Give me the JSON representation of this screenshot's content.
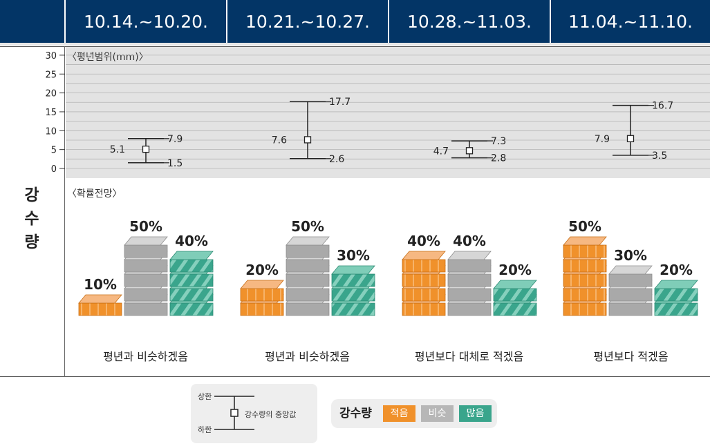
{
  "header": {
    "weeks": [
      "10.14.~10.20.",
      "10.21.~10.27.",
      "10.28.~11.03.",
      "11.04.~11.10."
    ]
  },
  "side_label": [
    "강",
    "수",
    "량"
  ],
  "range_section_title": "〈평년범위(mm)〉",
  "prob_section_title": "〈확률전망〉",
  "chart_data": {
    "type": "error-bar",
    "categories": [
      "10.14.~10.20.",
      "10.21.~10.27.",
      "10.28.~11.03.",
      "11.04.~11.10."
    ],
    "ylim": [
      0,
      30
    ],
    "yticks": [
      0,
      5,
      10,
      15,
      20,
      25,
      30
    ],
    "grid": true,
    "series": [
      {
        "values": [
          5.1,
          7.6,
          4.7,
          7.9
        ]
      },
      {
        "values": [
          7.9,
          17.7,
          7.3,
          16.7
        ]
      },
      {
        "values": [
          1.5,
          2.6,
          2.8,
          3.5
        ]
      }
    ],
    "labels": {
      "median": [
        "5.1",
        "7.6",
        "4.7",
        "7.9"
      ],
      "upper": [
        "7.9",
        "17.7",
        "7.3",
        "16.7"
      ],
      "lower": [
        "1.5",
        "2.6",
        "2.8",
        "3.5"
      ]
    }
  },
  "probability": {
    "type": "bar",
    "categories": [
      "10.14.~10.20.",
      "10.21.~10.27.",
      "10.28.~11.03.",
      "11.04.~11.10."
    ],
    "series": [
      {
        "name": "적음",
        "values": [
          10,
          20,
          40,
          50
        ]
      },
      {
        "name": "비슷",
        "values": [
          50,
          50,
          40,
          30
        ]
      },
      {
        "name": "많음",
        "values": [
          40,
          30,
          20,
          20
        ]
      }
    ],
    "labels": [
      [
        "10%",
        "50%",
        "40%"
      ],
      [
        "20%",
        "50%",
        "30%"
      ],
      [
        "40%",
        "40%",
        "20%"
      ],
      [
        "50%",
        "30%",
        "20%"
      ]
    ],
    "colors": {
      "적음": "#f0912b",
      "비슷": "#b7b7b7",
      "많음": "#3aa58c"
    }
  },
  "outlooks": [
    "평년과 비슷하겠음",
    "평년과 비슷하겠음",
    "평년보다 대체로 적겠음",
    "평년보다 적겠음"
  ],
  "legend": {
    "upper": "상한",
    "lower": "하한",
    "median": "강수량의 중앙값",
    "title": "강수량",
    "items": [
      "적음",
      "비슷",
      "많음"
    ]
  }
}
